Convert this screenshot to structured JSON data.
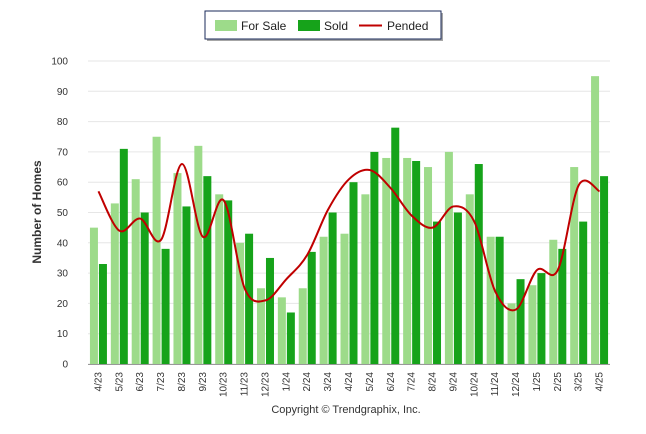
{
  "chart_data": {
    "type": "bar",
    "ylabel": "Number of Homes",
    "xlabel": "",
    "ylim": [
      0,
      100
    ],
    "yticks": [
      0,
      10,
      20,
      30,
      40,
      50,
      60,
      70,
      80,
      90,
      100
    ],
    "grid": true,
    "legend_position": "top-center",
    "categories": [
      "4/23",
      "5/23",
      "6/23",
      "7/23",
      "8/23",
      "9/23",
      "10/23",
      "11/23",
      "12/23",
      "1/24",
      "2/24",
      "3/24",
      "4/24",
      "5/24",
      "6/24",
      "7/24",
      "8/24",
      "9/24",
      "10/24",
      "11/24",
      "12/24",
      "1/25",
      "2/25",
      "3/25",
      "4/25"
    ],
    "series": [
      {
        "name": "For Sale",
        "kind": "bar",
        "color": "#9ddb8a",
        "values": [
          45,
          53,
          61,
          75,
          63,
          72,
          56,
          40,
          25,
          22,
          25,
          42,
          43,
          56,
          68,
          68,
          65,
          70,
          56,
          42,
          20,
          26,
          41,
          65,
          95
        ]
      },
      {
        "name": "Sold",
        "kind": "bar",
        "color": "#16a31a",
        "values": [
          33,
          71,
          50,
          38,
          52,
          62,
          54,
          43,
          35,
          17,
          37,
          50,
          60,
          70,
          78,
          67,
          47,
          50,
          66,
          42,
          28,
          30,
          38,
          47,
          62
        ]
      },
      {
        "name": "Pended",
        "kind": "line",
        "color": "#c00000",
        "values": [
          57,
          44,
          48,
          41,
          66,
          42,
          54,
          25,
          21,
          28,
          36,
          51,
          61,
          64,
          58,
          49,
          45,
          52,
          47,
          24,
          18,
          31,
          31,
          59,
          57
        ]
      }
    ],
    "footer": "Copyright © Trendgraphix, Inc."
  }
}
